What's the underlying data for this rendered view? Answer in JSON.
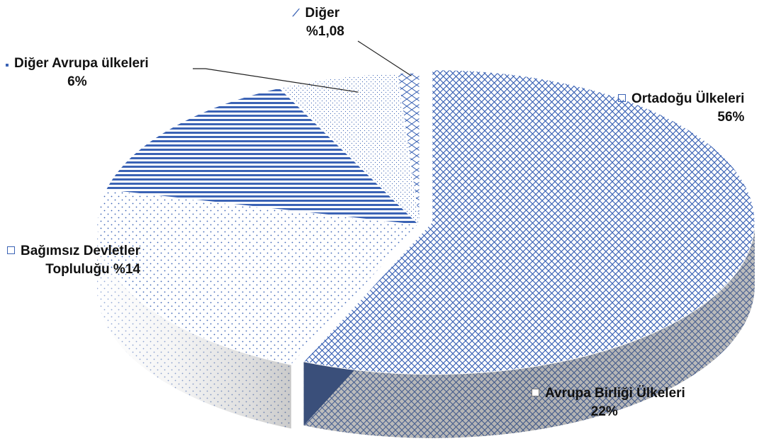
{
  "chart_data": {
    "type": "pie",
    "style": "3d-exploded",
    "slices": [
      {
        "label": "Ortadoğu Ülkeleri",
        "value_label": "56%",
        "value": 56,
        "pattern": "diamond-grid",
        "exploded": true
      },
      {
        "label": "Avrupa Birliği Ülkeleri",
        "value_label": "22%",
        "value": 22,
        "pattern": "dots"
      },
      {
        "label": "Bağımsız Devletler Topluluğu",
        "value_label": "%14",
        "value": 14,
        "pattern": "horizontal-lines"
      },
      {
        "label": "Diğer Avrupa ülkeleri",
        "value_label": "6%",
        "value": 6,
        "pattern": "small-dots"
      },
      {
        "label": "Diğer",
        "value_label": "%1,08",
        "value": 1.08,
        "pattern": "brick"
      }
    ],
    "colors": {
      "pattern": "#3b63b5",
      "background": "#ffffff",
      "side_dark": "#5f5f5f",
      "side_light": "#e4e4e4"
    }
  },
  "labels": {
    "orta_label": "Ortadoğu Ülkeleri",
    "orta_value": "56%",
    "ab_label": "Avrupa Birliği Ülkeleri",
    "ab_value": "22%",
    "bdt_label1": "Bağımsız Devletler",
    "bdt_label2": "Topluluğu %14",
    "dae_label": "Diğer Avrupa ülkeleri",
    "dae_value": "6%",
    "diger_label": "Diğer",
    "diger_value": "%1,08"
  }
}
